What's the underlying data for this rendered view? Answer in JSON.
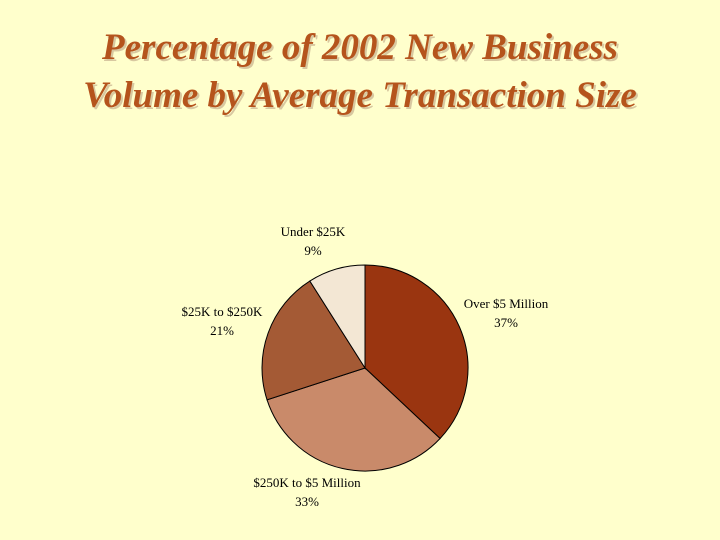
{
  "chart_data": {
    "type": "pie",
    "title": "Percentage of 2002 New Business Volume by Average Transaction Size",
    "categories": [
      "Over $5 Million",
      "$250K to $5 Million",
      "$25K to $250K",
      "Under $25K"
    ],
    "values": [
      37,
      33,
      21,
      9
    ],
    "value_labels": [
      "37%",
      "33%",
      "21%",
      "9%"
    ],
    "colors": [
      "#9a3510",
      "#c98a6a",
      "#a45a35",
      "#f3e7d4"
    ]
  }
}
